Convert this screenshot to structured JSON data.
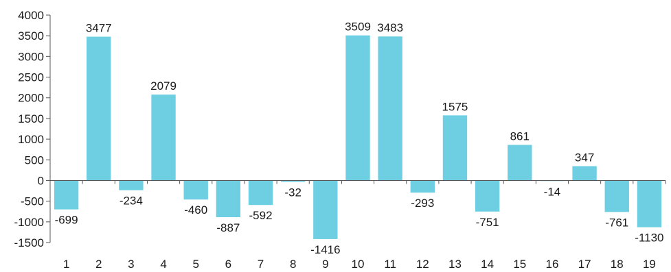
{
  "chart_data": {
    "type": "bar",
    "title": "",
    "xlabel": "",
    "ylabel": "",
    "categories": [
      "1",
      "2",
      "3",
      "4",
      "5",
      "6",
      "7",
      "8",
      "9",
      "10",
      "11",
      "12",
      "13",
      "14",
      "15",
      "16",
      "17",
      "18",
      "19"
    ],
    "values": [
      -699,
      3477,
      -234,
      2079,
      -460,
      -887,
      -592,
      -32,
      -1416,
      3509,
      3483,
      -293,
      1575,
      -751,
      861,
      -14,
      347,
      -761,
      -1130
    ],
    "ylim": [
      -1500,
      4000
    ],
    "yticks": [
      4000,
      3500,
      3000,
      2500,
      2000,
      1500,
      1000,
      500,
      0,
      -500,
      -1000,
      -1500
    ],
    "bar_color": "#6ecfe3",
    "axis_color": "#555555",
    "grid": false,
    "data_labels": true
  }
}
